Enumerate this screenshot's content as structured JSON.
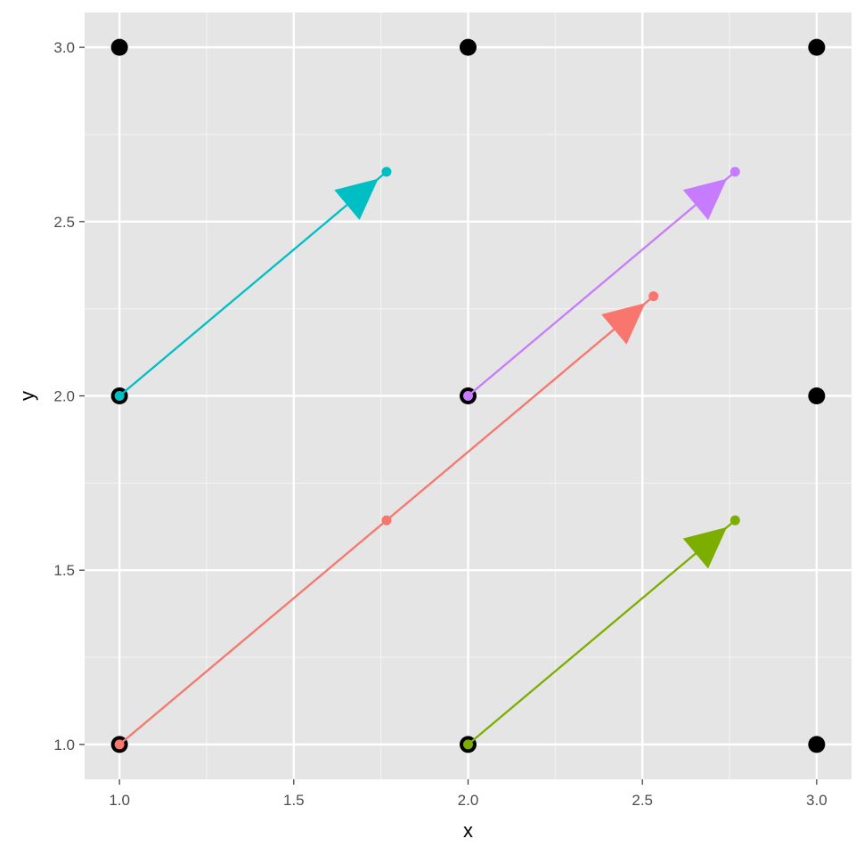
{
  "chart_data": {
    "type": "scatter",
    "xlabel": "x",
    "ylabel": "y",
    "xlim": [
      0.9,
      3.1
    ],
    "ylim": [
      0.9,
      3.1
    ],
    "x_ticks": [
      "1.0",
      "1.5",
      "2.0",
      "2.5",
      "3.0"
    ],
    "y_ticks": [
      "1.0",
      "1.5",
      "2.0",
      "2.5",
      "3.0"
    ],
    "grid": true,
    "background": "#e5e5e5",
    "points": [
      {
        "x": 1,
        "y": 1
      },
      {
        "x": 2,
        "y": 1
      },
      {
        "x": 3,
        "y": 1
      },
      {
        "x": 1,
        "y": 2
      },
      {
        "x": 2,
        "y": 2
      },
      {
        "x": 3,
        "y": 2
      },
      {
        "x": 1,
        "y": 3
      },
      {
        "x": 2,
        "y": 3
      },
      {
        "x": 3,
        "y": 3
      }
    ],
    "arrows": [
      {
        "color": "#f8766d",
        "x0": 1.0,
        "y0": 1.0,
        "xm": 1.766,
        "ym": 1.643,
        "x1": 2.532,
        "y1": 2.286
      },
      {
        "color": "#7cae00",
        "x0": 2.0,
        "y0": 1.0,
        "x1": 2.766,
        "y1": 1.643
      },
      {
        "color": "#00bfc4",
        "x0": 1.0,
        "y0": 2.0,
        "x1": 1.766,
        "y1": 2.643
      },
      {
        "color": "#c77cff",
        "x0": 2.0,
        "y0": 2.0,
        "x1": 2.766,
        "y1": 2.643
      }
    ]
  }
}
